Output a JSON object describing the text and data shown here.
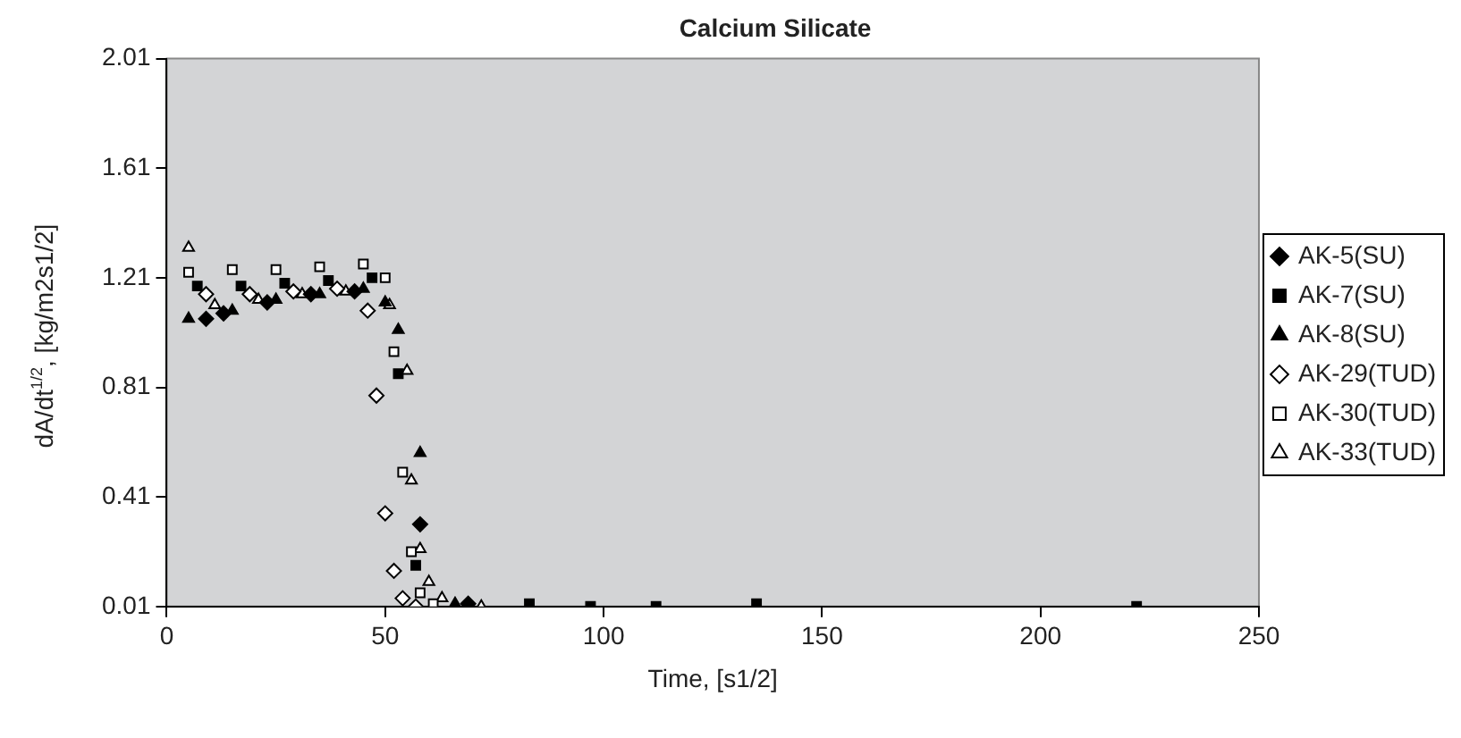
{
  "chart_data": {
    "type": "scatter",
    "title": "Calcium Silicate",
    "xlabel": "Time, [s1/2]",
    "ylabel": "dA/dt$^{1/2}$, [kg/m2s1/2]",
    "xlim": [
      0,
      250
    ],
    "xticks": [
      0,
      50,
      100,
      150,
      200,
      250
    ],
    "ylim": [
      0.01,
      2.01
    ],
    "yticks": [
      0.01,
      0.41,
      0.81,
      1.21,
      1.61,
      2.01
    ],
    "grid": false,
    "legend": "right",
    "series": [
      {
        "name": "AK-5(SU)",
        "color": "#000000",
        "marker": "diamond",
        "x": [
          9,
          13,
          23,
          33,
          43,
          58,
          69
        ],
        "values": [
          1.06,
          1.08,
          1.12,
          1.15,
          1.16,
          0.31,
          0.02
        ]
      },
      {
        "name": "AK-7(SU)",
        "color": "#000000",
        "marker": "square",
        "x": [
          7,
          17,
          27,
          37,
          47,
          53,
          57,
          83,
          97,
          112,
          135,
          222
        ],
        "values": [
          1.18,
          1.18,
          1.19,
          1.2,
          1.21,
          0.86,
          0.16,
          0.02,
          0.01,
          0.01,
          0.02,
          0.01
        ]
      },
      {
        "name": "AK-8(SU)",
        "color": "#000000",
        "marker": "triangle",
        "x": [
          5,
          15,
          25,
          35,
          45,
          50,
          53,
          58,
          66
        ],
        "values": [
          1.06,
          1.09,
          1.13,
          1.15,
          1.17,
          1.12,
          1.02,
          0.57,
          0.02
        ]
      },
      {
        "name": "AK-29(TUD)",
        "color": "#ffffff",
        "marker": "diamond",
        "x": [
          9,
          19,
          29,
          39,
          46,
          48,
          50,
          52,
          54,
          57
        ],
        "values": [
          1.15,
          1.15,
          1.16,
          1.17,
          1.09,
          0.78,
          0.35,
          0.14,
          0.04,
          0.01
        ]
      },
      {
        "name": "AK-30(TUD)",
        "color": "#ffffff",
        "marker": "square",
        "x": [
          5,
          15,
          25,
          35,
          45,
          50,
          52,
          54,
          56,
          58,
          61
        ],
        "values": [
          1.23,
          1.24,
          1.24,
          1.25,
          1.26,
          1.21,
          0.94,
          0.5,
          0.21,
          0.06,
          0.02
        ]
      },
      {
        "name": "AK-33(TUD)",
        "color": "#ffffff",
        "marker": "triangle",
        "x": [
          5,
          11,
          21,
          31,
          41,
          51,
          55,
          56,
          58,
          60,
          63,
          72
        ],
        "values": [
          1.32,
          1.11,
          1.13,
          1.15,
          1.16,
          1.11,
          0.87,
          0.47,
          0.22,
          0.1,
          0.04,
          0.01
        ]
      }
    ]
  }
}
